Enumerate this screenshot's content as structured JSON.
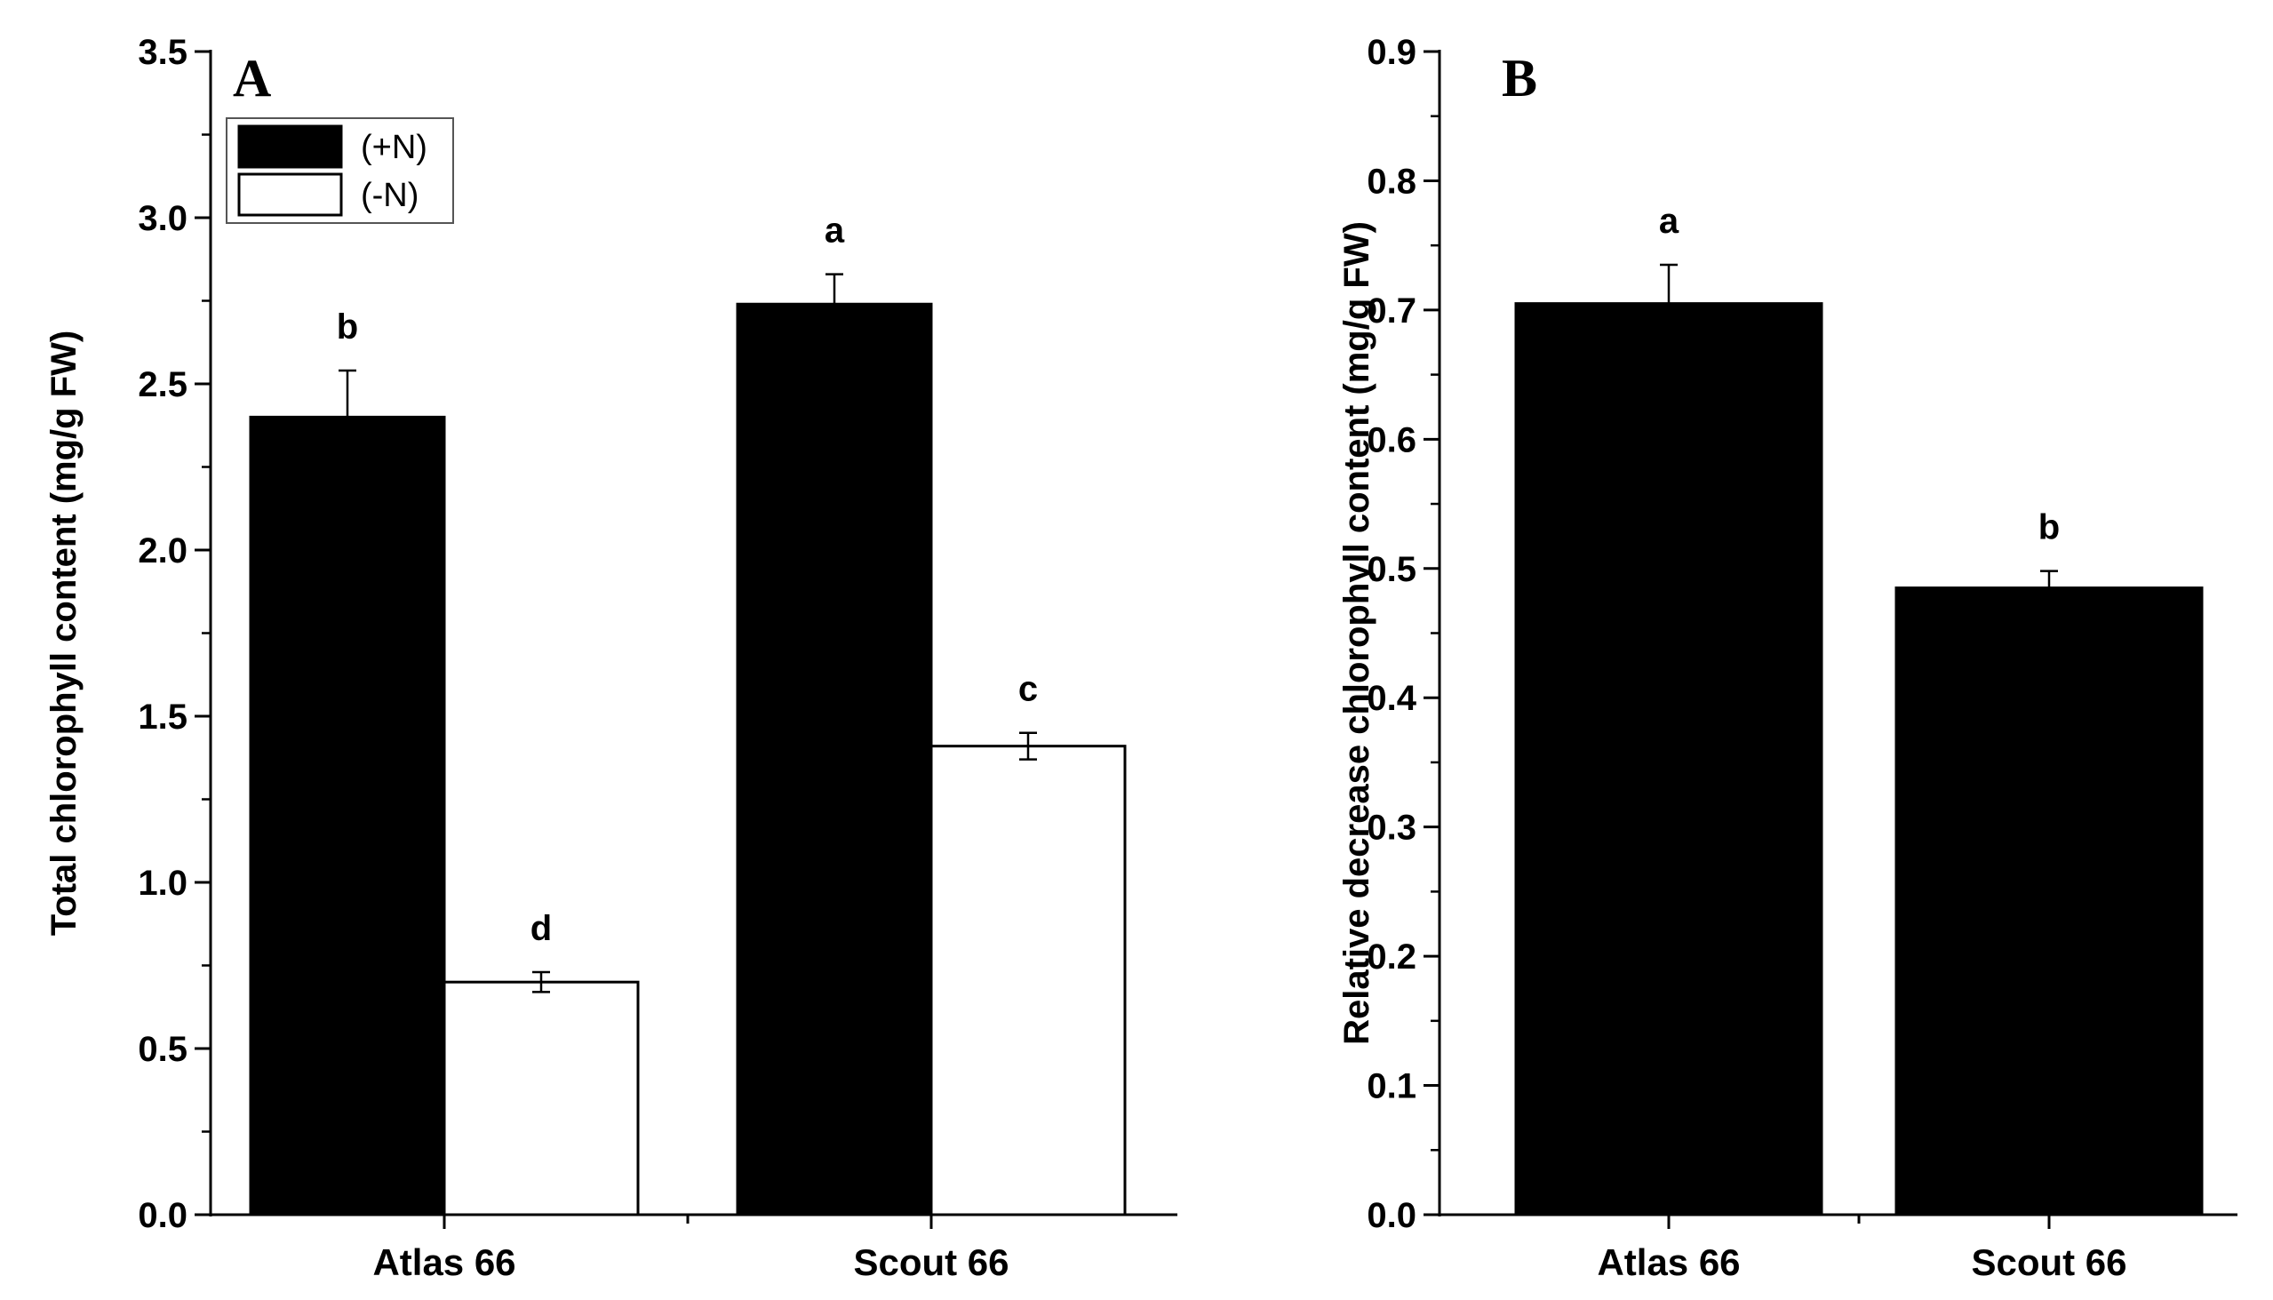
{
  "chart_data": [
    {
      "type": "bar",
      "panel_label": "A",
      "title": "",
      "xlabel": "",
      "ylabel": "Total chlorophyll content (mg/g FW)",
      "ylim": [
        0,
        3.5
      ],
      "yticks": [
        "0.0",
        "0.5",
        "1.0",
        "1.5",
        "2.0",
        "2.5",
        "3.0",
        "3.5"
      ],
      "categories": [
        "Atlas 66",
        "Scout 66"
      ],
      "legend": {
        "position": "top-left"
      },
      "series": [
        {
          "name": "(+N)",
          "color": "#000000",
          "values": [
            2.4,
            2.74
          ],
          "errors": [
            0.14,
            0.09
          ],
          "annotations": [
            "b",
            "a"
          ]
        },
        {
          "name": "(-N)",
          "color": "#ffffff",
          "values": [
            0.7,
            1.41
          ],
          "errors": [
            0.03,
            0.04
          ],
          "annotations": [
            "d",
            "c"
          ]
        }
      ]
    },
    {
      "type": "bar",
      "panel_label": "B",
      "title": "",
      "xlabel": "",
      "ylabel": "Relative decrease chlorophyll content (mg/g FW)",
      "ylim": [
        0,
        0.9
      ],
      "yticks": [
        "0.0",
        "0.1",
        "0.2",
        "0.3",
        "0.4",
        "0.5",
        "0.6",
        "0.7",
        "0.8",
        "0.9"
      ],
      "categories": [
        "Atlas 66",
        "Scout 66"
      ],
      "series": [
        {
          "color": "#000000",
          "values": [
            0.705,
            0.485
          ],
          "errors": [
            0.03,
            0.013
          ],
          "annotations": [
            "a",
            "b"
          ]
        }
      ]
    }
  ]
}
